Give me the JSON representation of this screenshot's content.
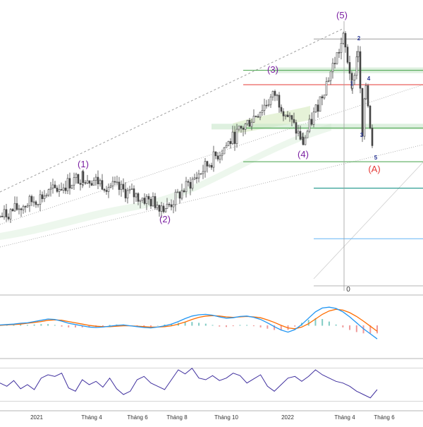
{
  "colors": {
    "wave_label": "#7b1fa2",
    "correction_label": "#e53935",
    "subwave_label": "#283593",
    "candle": "#444444",
    "trend_dotted": "#9e9e9e",
    "fib_green": "#43a047",
    "fib_red": "#e53935",
    "fib_teal": "#00897b",
    "fib_blue": "#64b5f6",
    "fib_gray": "#9e9e9e",
    "macd_line": "#2196f3",
    "signal_line": "#ff6d00",
    "hist_pos": "#80cbc4",
    "hist_neg": "#ef9a9a",
    "rsi_line": "#3f2f9e",
    "panel_border": "#9e9e9e",
    "axis_text": "#333333"
  },
  "chart_data": [
    {
      "type": "candlestick",
      "title": "",
      "xlabel": "",
      "ylabel": "",
      "x_ticks": [
        "2021",
        "Tháng 4",
        "Tháng 6",
        "Tháng 8",
        "Tháng 10",
        "2022",
        "Tháng 4",
        "Tháng 6"
      ],
      "y_tick_labels": [
        "0"
      ],
      "grid": false,
      "wave_labels": [
        {
          "text": "(1)",
          "role": "primary"
        },
        {
          "text": "(2)",
          "role": "primary"
        },
        {
          "text": "(3)",
          "role": "primary"
        },
        {
          "text": "(4)",
          "role": "primary"
        },
        {
          "text": "(5)",
          "role": "primary"
        },
        {
          "text": "(A)",
          "role": "correction"
        },
        {
          "text": "1",
          "role": "sub"
        },
        {
          "text": "2",
          "role": "sub"
        },
        {
          "text": "3",
          "role": "sub"
        },
        {
          "text": "4",
          "role": "sub"
        },
        {
          "text": "5",
          "role": "sub"
        }
      ],
      "wave_path": [
        {
          "wave": "start",
          "value": 23
        },
        {
          "wave": "(1)",
          "value": 40
        },
        {
          "wave": "(2)",
          "value": 27
        },
        {
          "wave": "(3)",
          "value": 74
        },
        {
          "wave": "(4)",
          "value": 54
        },
        {
          "wave": "(5)",
          "value": 97
        },
        {
          "wave": "1",
          "value": 78
        },
        {
          "wave": "2",
          "value": 93
        },
        {
          "wave": "3",
          "value": 56
        },
        {
          "wave": "4",
          "value": 78
        },
        {
          "wave": "5",
          "value": 46
        }
      ],
      "horizontal_levels": [
        {
          "value": 97,
          "color": "gray"
        },
        {
          "value": 84,
          "color": "green"
        },
        {
          "value": 78,
          "color": "red"
        },
        {
          "value": 60,
          "color": "green"
        },
        {
          "value": 46,
          "color": "green"
        },
        {
          "value": 35,
          "color": "teal"
        },
        {
          "value": 14,
          "color": "blue"
        }
      ],
      "channels": [
        "dotted upper trendline",
        "dotted lower channel",
        "dotted lower parallel"
      ]
    },
    {
      "type": "line",
      "title": "",
      "series": [
        {
          "values": [
            0.1,
            0.2,
            0.3,
            0.5,
            0.6,
            0.9,
            1.2,
            1.5,
            1.4,
            1.0,
            0.5,
            0.2,
            -0.1,
            -0.4,
            -0.5,
            -0.4,
            -0.2,
            0.0,
            0.1,
            -0.1,
            -0.3,
            -0.5,
            -0.6,
            -0.4,
            -0.1,
            0.3,
            0.9,
            1.6,
            2.2,
            2.5,
            2.6,
            2.4,
            2.0,
            1.7,
            1.8,
            2.1,
            2.2,
            1.9,
            1.4,
            0.6,
            -0.3,
            -1.1,
            -1.6,
            -1.0,
            0.2,
            1.7,
            3.2,
            4.1,
            4.3,
            4.0,
            3.2,
            2.0,
            0.6,
            -0.8,
            -2.0,
            -3.2
          ]
        },
        {
          "values": [
            0.0,
            0.1,
            0.2,
            0.3,
            0.5,
            0.7,
            0.9,
            1.2,
            1.3,
            1.2,
            0.9,
            0.6,
            0.3,
            0.0,
            -0.2,
            -0.3,
            -0.3,
            -0.2,
            -0.1,
            -0.1,
            -0.2,
            -0.3,
            -0.4,
            -0.4,
            -0.3,
            -0.1,
            0.3,
            0.8,
            1.4,
            1.9,
            2.2,
            2.3,
            2.2,
            2.0,
            1.9,
            2.0,
            2.1,
            2.0,
            1.8,
            1.3,
            0.7,
            0.0,
            -0.6,
            -0.8,
            -0.4,
            0.4,
            1.5,
            2.6,
            3.4,
            3.8,
            3.6,
            3.0,
            2.1,
            1.0,
            -0.2,
            -1.4
          ]
        }
      ],
      "hist_neg_values": [
        -1.1,
        -1.5,
        -1.8
      ]
    },
    {
      "type": "line",
      "title": "",
      "series": [
        {
          "values": [
            52,
            48,
            55,
            45,
            50,
            44,
            58,
            62,
            60,
            64,
            46,
            42,
            56,
            50,
            54,
            47,
            58,
            45,
            38,
            42,
            56,
            60,
            52,
            48,
            44,
            56,
            68,
            63,
            70,
            58,
            56,
            61,
            55,
            58,
            64,
            61,
            52,
            57,
            62,
            48,
            42,
            50,
            58,
            60,
            54,
            60,
            68,
            62,
            58,
            54,
            52,
            48,
            42,
            38,
            34,
            44
          ]
        }
      ],
      "guide_levels": [
        70,
        30
      ]
    }
  ]
}
